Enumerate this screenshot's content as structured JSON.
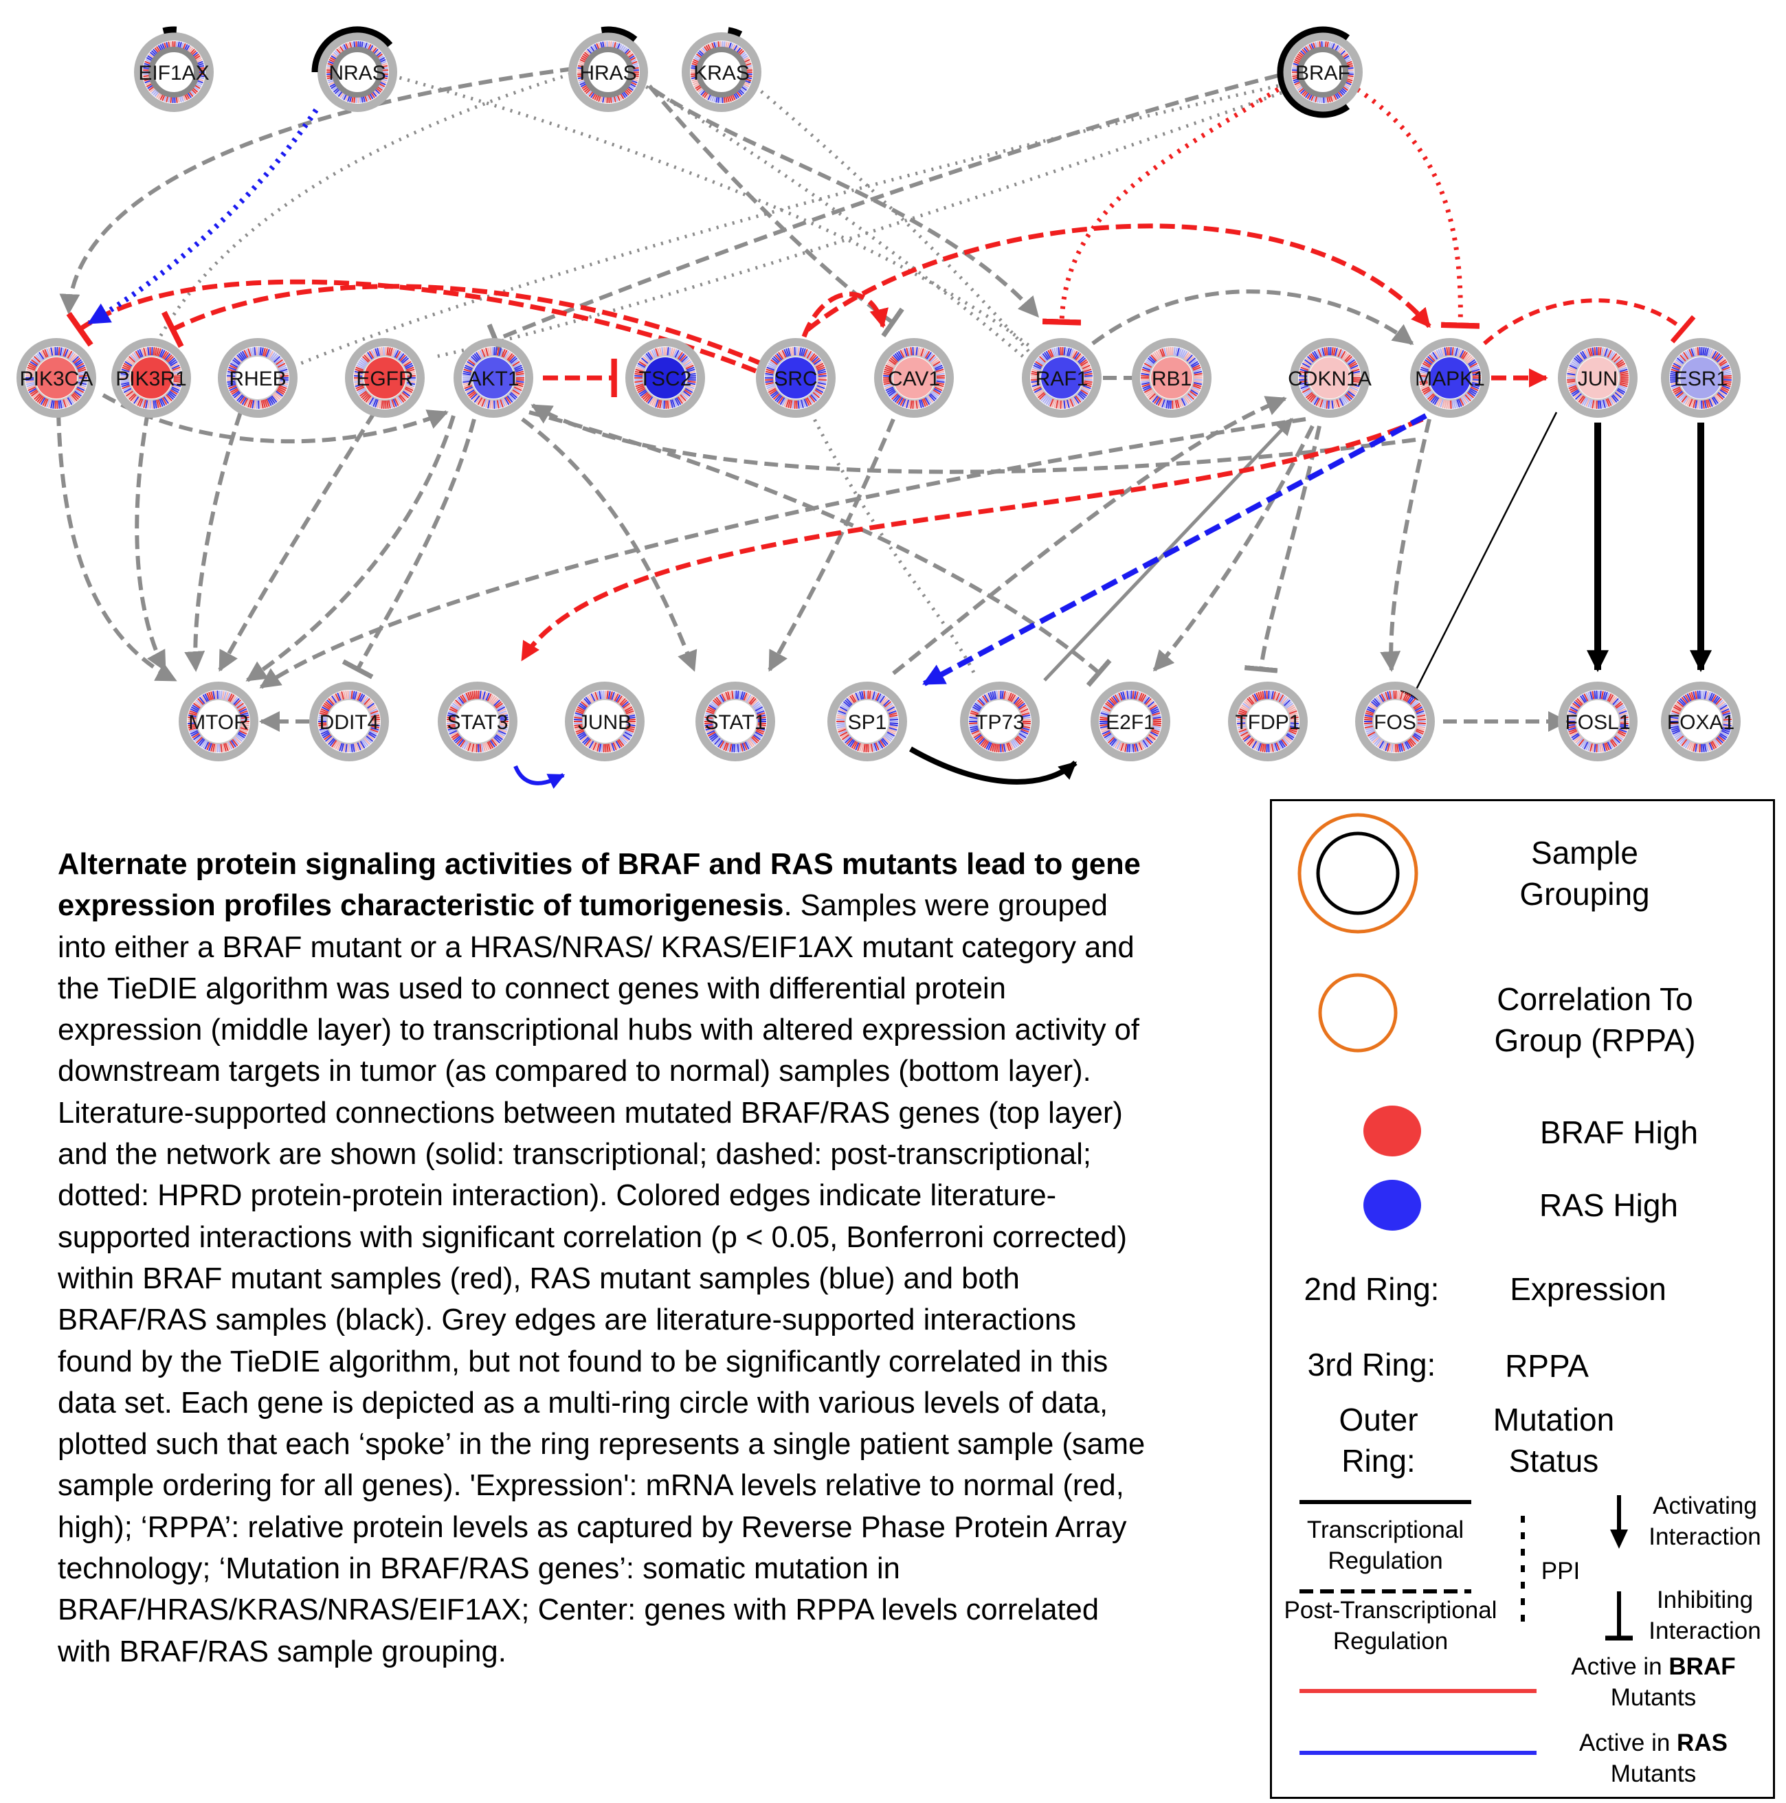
{
  "nodes": [
    {
      "id": "EIF1AX",
      "label": "EIF1AX",
      "center": "#ffffff"
    },
    {
      "id": "NRAS",
      "label": "NRAS",
      "center": "#ffffff"
    },
    {
      "id": "HRAS",
      "label": "HRAS",
      "center": "#ffffff"
    },
    {
      "id": "KRAS",
      "label": "KRAS",
      "center": "#ffffff"
    },
    {
      "id": "BRAF",
      "label": "BRAF",
      "center": "#ffffff"
    },
    {
      "id": "PIK3CA",
      "label": "PIK3CA",
      "center": "#f26b6b"
    },
    {
      "id": "PIK3R1",
      "label": "PIK3R1",
      "center": "#ee4444"
    },
    {
      "id": "RHEB",
      "label": "RHEB",
      "center": "#ffffff"
    },
    {
      "id": "EGFR",
      "label": "EGFR",
      "center": "#ee4444"
    },
    {
      "id": "AKT1",
      "label": "AKT1",
      "center": "#5555ee"
    },
    {
      "id": "TSC2",
      "label": "TSC2",
      "center": "#2222dd"
    },
    {
      "id": "SRC",
      "label": "SRC",
      "center": "#3333ee"
    },
    {
      "id": "CAV1",
      "label": "CAV1",
      "center": "#f7a9a9"
    },
    {
      "id": "RAF1",
      "label": "RAF1",
      "center": "#4444ee"
    },
    {
      "id": "RB1",
      "label": "RB1",
      "center": "#f59a9a"
    },
    {
      "id": "CDKN1A",
      "label": "CDKN1A",
      "center": "#f7c4c4"
    },
    {
      "id": "MAPK1",
      "label": "MAPK1",
      "center": "#3a3aee"
    },
    {
      "id": "JUN",
      "label": "JUN",
      "center": "#f7c8c8"
    },
    {
      "id": "ESR1",
      "label": "ESR1",
      "center": "#a7a7ee"
    },
    {
      "id": "MTOR",
      "label": "MTOR",
      "center": "#ffffff"
    },
    {
      "id": "DDIT4",
      "label": "DDIT4",
      "center": "#ffffff"
    },
    {
      "id": "STAT3",
      "label": "STAT3",
      "center": "#ffffff"
    },
    {
      "id": "JUNB",
      "label": "JUNB",
      "center": "#ffffff"
    },
    {
      "id": "STAT1",
      "label": "STAT1",
      "center": "#ffffff"
    },
    {
      "id": "SP1",
      "label": "SP1",
      "center": "#ffffff"
    },
    {
      "id": "TP73",
      "label": "TP73",
      "center": "#ffffff"
    },
    {
      "id": "E2F1",
      "label": "E2F1",
      "center": "#ffffff"
    },
    {
      "id": "TFDP1",
      "label": "TFDP1",
      "center": "#ffffff"
    },
    {
      "id": "FOS",
      "label": "FOS",
      "center": "#ffffff"
    },
    {
      "id": "FOSL1",
      "label": "FOSL1",
      "center": "#ffffff"
    },
    {
      "id": "FOXA1",
      "label": "FOXA1",
      "center": "#ffffff"
    }
  ],
  "edges": [
    {
      "from": "NRAS",
      "to": "PIK3CA",
      "style": "dotted",
      "color": "blue",
      "type": "activating"
    },
    {
      "from": "BRAF",
      "to": "RAF1",
      "style": "dotted",
      "color": "red",
      "type": "inhibiting"
    },
    {
      "from": "BRAF",
      "to": "MAPK1",
      "style": "dotted",
      "color": "red",
      "type": "inhibiting"
    },
    {
      "from": "SRC",
      "to": "PIK3CA",
      "style": "dashed",
      "color": "red",
      "type": "inhibiting"
    },
    {
      "from": "SRC",
      "to": "PIK3R1",
      "style": "dashed",
      "color": "red",
      "type": "inhibiting"
    },
    {
      "from": "SRC",
      "to": "CAV1",
      "style": "dashed",
      "color": "red",
      "type": "activating"
    },
    {
      "from": "SRC",
      "to": "MAPK1",
      "style": "dashed",
      "color": "red",
      "type": "activating"
    },
    {
      "from": "AKT1",
      "to": "TSC2",
      "style": "dashed",
      "color": "red",
      "type": "inhibiting"
    },
    {
      "from": "MAPK1",
      "to": "JUN",
      "style": "dashed",
      "color": "red",
      "type": "activating"
    },
    {
      "from": "MAPK1",
      "to": "ESR1",
      "style": "dashed",
      "color": "red",
      "type": "inhibiting"
    },
    {
      "from": "MAPK1",
      "to": "STAT3",
      "style": "dashed",
      "color": "red",
      "type": "activating"
    },
    {
      "from": "MAPK1",
      "to": "SP1",
      "style": "dashed",
      "color": "blue",
      "type": "activating"
    },
    {
      "from": "JUN",
      "to": "FOSL1",
      "style": "solid",
      "color": "black",
      "type": "activating"
    },
    {
      "from": "ESR1",
      "to": "FOXA1",
      "style": "solid",
      "color": "black",
      "type": "activating"
    },
    {
      "from": "JUN",
      "to": "FOS",
      "style": "solid",
      "color": "black",
      "type": "inhibiting"
    },
    {
      "from": "SP1",
      "to": "E2F1",
      "style": "solid",
      "color": "black",
      "type": "activating"
    },
    {
      "from": "STAT3",
      "to": "JUNB",
      "style": "solid",
      "color": "blue",
      "type": "activating"
    },
    {
      "from": "TP73",
      "to": "CDKN1A",
      "style": "solid",
      "color": "grey",
      "type": "activating"
    },
    {
      "from": "FOS",
      "to": "FOSL1",
      "style": "dashed",
      "color": "grey",
      "type": "activating"
    },
    {
      "from": "DDIT4",
      "to": "MTOR",
      "style": "dashed",
      "color": "grey",
      "type": "activating"
    },
    {
      "from": "RAF1",
      "to": "RB1",
      "style": "dashed",
      "color": "grey",
      "type": "inhibiting"
    },
    {
      "from": "HRAS",
      "to": "PIK3CA",
      "style": "dashed",
      "color": "grey",
      "type": "activating"
    },
    {
      "from": "HRAS",
      "to": "PIK3R1",
      "style": "dotted",
      "color": "grey",
      "type": "none"
    },
    {
      "from": "HRAS",
      "to": "RAF1",
      "style": "dashed",
      "color": "grey",
      "type": "activating"
    },
    {
      "from": "HRAS",
      "to": "CAV1",
      "style": "dashed",
      "color": "grey",
      "type": "inhibiting"
    },
    {
      "from": "HRAS",
      "to": "RAF1",
      "style": "dotted",
      "color": "grey",
      "type": "none"
    },
    {
      "from": "KRAS",
      "to": "RAF1",
      "style": "dotted",
      "color": "grey",
      "type": "none"
    },
    {
      "from": "NRAS",
      "to": "RAF1",
      "style": "dotted",
      "color": "grey",
      "type": "none"
    },
    {
      "from": "BRAF",
      "to": "AKT1",
      "style": "dashed",
      "color": "grey",
      "type": "inhibiting"
    },
    {
      "from": "BRAF",
      "to": "EGFR",
      "style": "dotted",
      "color": "grey",
      "type": "none"
    },
    {
      "from": "BRAF",
      "to": "RHEB",
      "style": "dotted",
      "color": "grey",
      "type": "none"
    },
    {
      "from": "PIK3CA",
      "to": "MTOR",
      "style": "dashed",
      "color": "grey",
      "type": "activating"
    },
    {
      "from": "PIK3R1",
      "to": "MTOR",
      "style": "dashed",
      "color": "grey",
      "type": "activating"
    },
    {
      "from": "RHEB",
      "to": "MTOR",
      "style": "dashed",
      "color": "grey",
      "type": "activating"
    },
    {
      "from": "EGFR",
      "to": "MTOR",
      "style": "dashed",
      "color": "grey",
      "type": "activating"
    },
    {
      "from": "AKT1",
      "to": "MTOR",
      "style": "dashed",
      "color": "grey",
      "type": "activating"
    },
    {
      "from": "AKT1",
      "to": "DDIT4",
      "style": "dashed",
      "color": "grey",
      "type": "inhibiting"
    },
    {
      "from": "AKT1",
      "to": "STAT1",
      "style": "dashed",
      "color": "grey",
      "type": "activating"
    },
    {
      "from": "AKT1",
      "to": "E2F1",
      "style": "dashed",
      "color": "grey",
      "type": "inhibiting"
    },
    {
      "from": "PIK3CA",
      "to": "AKT1",
      "style": "dashed",
      "color": "grey",
      "type": "activating"
    },
    {
      "from": "RAF1",
      "to": "MAPK1",
      "style": "dashed",
      "color": "grey",
      "type": "activating"
    },
    {
      "from": "MAPK1",
      "to": "AKT1",
      "style": "dashed",
      "color": "grey",
      "type": "activating"
    },
    {
      "from": "MAPK1",
      "to": "FOS",
      "style": "dashed",
      "color": "grey",
      "type": "activating"
    },
    {
      "from": "CDKN1A",
      "to": "E2F1",
      "style": "dashed",
      "color": "grey",
      "type": "activating"
    },
    {
      "from": "CDKN1A",
      "to": "TFDP1",
      "style": "dashed",
      "color": "grey",
      "type": "inhibiting"
    },
    {
      "from": "CDKN1A",
      "to": "MTOR",
      "style": "dashed",
      "color": "grey",
      "type": "activating"
    },
    {
      "from": "CAV1",
      "to": "STAT1",
      "style": "dashed",
      "color": "grey",
      "type": "activating"
    },
    {
      "from": "SP1",
      "to": "CDKN1A",
      "style": "dashed",
      "color": "grey",
      "type": "activating"
    },
    {
      "from": "SRC",
      "to": "TP73",
      "style": "dotted",
      "color": "grey",
      "type": "none"
    }
  ],
  "caption": {
    "title": "Alternate protein signaling activities of BRAF and RAS mutants lead to gene expression profiles characteristic of tumorigenesis",
    "body": ". Samples were grouped into either a BRAF mutant or a HRAS/NRAS/ KRAS/EIF1AX mutant category and the TieDIE algorithm was used to connect genes with differential protein expression (middle layer) to transcriptional hubs with altered expression activity of downstream targets in tumor (as compared to normal) samples (bottom layer). Literature-supported connections between mutated BRAF/RAS genes (top layer) and the network are shown (solid: transcriptional; dashed: post-transcriptional; dotted: HPRD protein-protein interaction). Colored edges indicate literature-supported interactions with significant correlation (p < 0.05, Bonferroni corrected) within BRAF mutant samples (red), RAS mutant samples (blue) and both BRAF/RAS samples (black). Grey edges are literature-supported interactions found by the TieDIE algorithm, but not found to be significantly correlated in this data set. Each gene is depicted as a multi-ring circle with various levels of data, plotted such that each ‘spoke’ in the ring represents a single patient sample (same sample ordering for all genes). 'Expression': mRNA levels relative to normal (red, high); ‘RPPA’: relative protein levels as captured by Reverse Phase Protein Array technology; ‘Mutation in BRAF/RAS genes’: somatic mutation in BRAF/HRAS/KRAS/NRAS/EIF1AX; Center: genes with RPPA levels correlated with BRAF/RAS sample grouping."
  },
  "legend": {
    "sample_grouping": "Sample Grouping",
    "correlation": "Correlation To Group (RPPA)",
    "braf_high": "BRAF High",
    "ras_high": "RAS High",
    "ring2_label": "2nd Ring:",
    "ring2_value": "Expression",
    "ring3_label": "3rd Ring:",
    "ring3_value": "RPPA",
    "outer_label": "Outer Ring:",
    "outer_value": "Mutation Status",
    "transcriptional": "Transcriptional Regulation",
    "post_transcriptional": "Post-Transcriptional Regulation",
    "ppi": "PPI",
    "activating": "Activating Interaction",
    "inhibiting": "Inhibiting Interaction",
    "active_braf_prefix": "Active in",
    "active_braf_bold": "BRAF",
    "active_braf_suffix": "Mutants",
    "active_ras_prefix": "Active in",
    "active_ras_bold": "RAS",
    "active_ras_suffix": "Mutants",
    "colors": {
      "orange": "#e8731c",
      "red": "#f03c3c",
      "blue": "#2c2cf5",
      "black": "#000000",
      "grey": "#8c8c8c"
    }
  }
}
